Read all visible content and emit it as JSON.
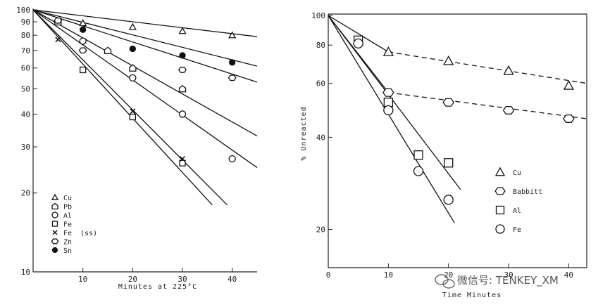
{
  "chart_data": [
    {
      "type": "line",
      "scale": "semilog-y",
      "xlabel": "Minutes at 225°C",
      "ylabel": "",
      "xlim": [
        0,
        45
      ],
      "ylim": [
        10,
        100
      ],
      "x_ticks": [
        10,
        20,
        30,
        40
      ],
      "x_tick_labels": [
        "10",
        "20",
        "30",
        "40"
      ],
      "y_ticks": [
        10,
        20,
        30,
        40,
        50,
        60,
        70,
        80,
        90,
        100
      ],
      "y_tick_labels": [
        "10",
        "20",
        "30",
        "40",
        "50",
        "60",
        "70",
        "80",
        "90",
        "100"
      ],
      "legend_position": "bottom-left",
      "legend": [
        {
          "label": "Cu",
          "marker": "triangle"
        },
        {
          "label": "Pb",
          "marker": "pentagon"
        },
        {
          "label": "Al",
          "marker": "circle"
        },
        {
          "label": "Fe",
          "marker": "square"
        },
        {
          "label": "Fe",
          "suffix": "(ss)",
          "marker": "x"
        },
        {
          "label": "Zn",
          "marker": "hexagon"
        },
        {
          "label": "Sn",
          "marker": "filled-circle"
        }
      ],
      "series": [
        {
          "label": "Cu",
          "marker": "triangle",
          "points": [
            [
              10,
              89
            ],
            [
              20,
              86
            ],
            [
              30,
              83
            ],
            [
              40,
              80
            ]
          ],
          "fit": [
            [
              0,
              100
            ],
            [
              45,
              79
            ],
            "solid"
          ]
        },
        {
          "label": "Pb",
          "marker": "pentagon",
          "points": [
            [
              5,
              90
            ],
            [
              15,
              70
            ],
            [
              20,
              60
            ],
            [
              30,
              50
            ]
          ],
          "fit": [
            [
              0,
              100
            ],
            [
              45,
              33
            ],
            "solid"
          ]
        },
        {
          "label": "Al",
          "marker": "circle",
          "points": [
            [
              10,
              76
            ],
            [
              20,
              55
            ],
            [
              30,
              40
            ],
            [
              40,
              27
            ]
          ],
          "fit": [
            [
              0,
              100
            ],
            [
              45,
              25
            ],
            "solid"
          ]
        },
        {
          "label": "Fe",
          "marker": "square",
          "points": [
            [
              10,
              59
            ],
            [
              20,
              39
            ],
            [
              30,
              26
            ]
          ],
          "fit": [
            [
              0,
              100
            ],
            [
              39,
              18
            ],
            "solid"
          ]
        },
        {
          "label": "Fe (ss)",
          "marker": "x",
          "points": [
            [
              5,
              77
            ],
            [
              20,
              41
            ],
            [
              30,
              27
            ]
          ],
          "fit": [
            [
              0,
              100
            ],
            [
              36,
              18
            ],
            "solid"
          ]
        },
        {
          "label": "Zn",
          "marker": "hexagon",
          "points": [
            [
              5,
              91
            ],
            [
              10,
              70
            ],
            [
              30,
              59
            ],
            [
              40,
              55
            ]
          ],
          "fit": [
            [
              0,
              100
            ],
            [
              45,
              53
            ],
            "solid"
          ]
        },
        {
          "label": "Sn",
          "marker": "filled-circle",
          "points": [
            [
              10,
              84
            ],
            [
              20,
              71
            ],
            [
              30,
              67
            ],
            [
              40,
              63
            ]
          ],
          "fit": [
            [
              0,
              100
            ],
            [
              45,
              61
            ],
            "solid"
          ]
        }
      ]
    },
    {
      "type": "line",
      "scale": "semilog-y",
      "xlabel": "Time Minutes",
      "ylabel": "% Unreacted",
      "xlim": [
        0,
        43
      ],
      "ylim": [
        15,
        100
      ],
      "x_ticks": [
        0,
        10,
        20,
        30,
        40
      ],
      "x_tick_labels": [
        "0",
        "10",
        "20",
        "30",
        "40"
      ],
      "y_ticks": [
        20,
        40,
        60,
        80,
        100
      ],
      "y_tick_labels": [
        "20",
        "40",
        "60",
        "80",
        "100"
      ],
      "legend_position": "bottom-right",
      "legend": [
        {
          "label": "Cu",
          "marker": "triangle"
        },
        {
          "label": "Babbitt",
          "marker": "hexagon"
        },
        {
          "label": "Al",
          "marker": "square"
        },
        {
          "label": "Fe",
          "marker": "circle"
        }
      ],
      "series": [
        {
          "label": "Cu",
          "marker": "triangle",
          "points": [
            [
              10,
              76
            ],
            [
              20,
              71
            ],
            [
              30,
              66
            ],
            [
              40,
              59
            ]
          ],
          "fit": [
            [
              0,
              100
            ],
            [
              10,
              76
            ],
            "solid"
          ],
          "fit2": [
            [
              10,
              76
            ],
            [
              43,
              60
            ],
            "dashed"
          ]
        },
        {
          "label": "Babbitt",
          "marker": "hexagon",
          "points": [
            [
              10,
              56
            ],
            [
              20,
              52
            ],
            [
              30,
              49
            ],
            [
              40,
              46
            ]
          ],
          "fit": [
            [
              0,
              100
            ],
            [
              10,
              56
            ],
            "solid"
          ],
          "fit2": [
            [
              10,
              56
            ],
            [
              43,
              46
            ],
            "dashed"
          ]
        },
        {
          "label": "Al",
          "marker": "square",
          "points": [
            [
              5,
              83
            ],
            [
              10,
              52
            ],
            [
              15,
              35
            ],
            [
              20,
              33
            ]
          ],
          "fit": [
            [
              0,
              100
            ],
            [
              22,
              27
            ],
            "solid"
          ]
        },
        {
          "label": "Fe",
          "marker": "circle",
          "points": [
            [
              5,
              81
            ],
            [
              10,
              49
            ],
            [
              15,
              31
            ],
            [
              20,
              25
            ]
          ],
          "fit": [
            [
              0,
              100
            ],
            [
              21,
              21
            ],
            "solid"
          ]
        }
      ]
    }
  ],
  "watermark": {
    "text": "微信号: TENKEY_XM",
    "icon": "wechat-icon"
  }
}
